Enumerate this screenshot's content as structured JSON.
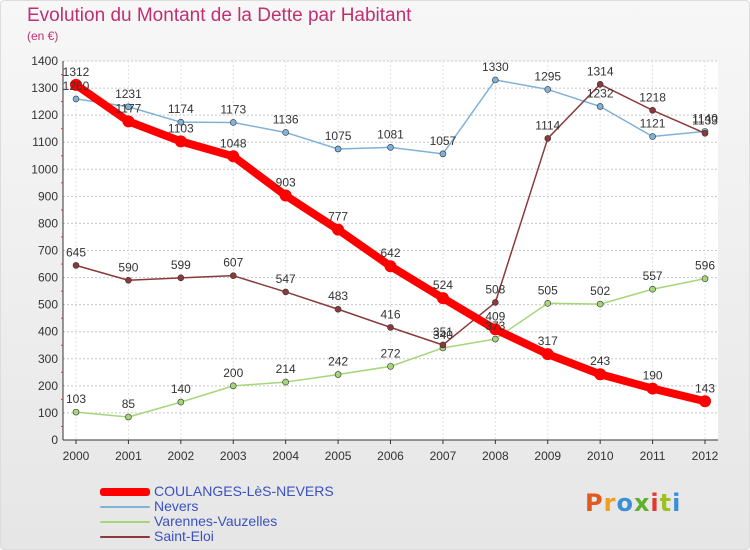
{
  "title": "Evolution du Montant de la Dette par Habitant",
  "subtitle": "(en €)",
  "brand": "Proxiti",
  "brand_colors": [
    "#e05a20",
    "#f0a020",
    "#3a8fd8",
    "#60b030",
    "#e03a30",
    "#a0c020",
    "#3a8fd8"
  ],
  "chart_data": {
    "type": "line",
    "x": [
      "2000",
      "2001",
      "2002",
      "2003",
      "2004",
      "2005",
      "2006",
      "2007",
      "2008",
      "2009",
      "2010",
      "2011",
      "2012"
    ],
    "ylim": [
      0,
      1400
    ],
    "yticks": [
      0,
      100,
      200,
      300,
      400,
      500,
      600,
      700,
      800,
      900,
      1000,
      1100,
      1200,
      1300,
      1400
    ],
    "grid": "horizontal",
    "legend_position": "bottom-left",
    "series": [
      {
        "name": "COULANGES-LèS-NEVERS",
        "color": "#ff0000",
        "values": [
          1312,
          1177,
          1103,
          1048,
          903,
          777,
          642,
          524,
          409,
          317,
          243,
          190,
          143
        ],
        "labels": [
          "1312",
          "1177",
          "1103",
          "1048",
          "903",
          "777",
          "642",
          "524",
          "409",
          "317",
          "243",
          "190",
          "143"
        ]
      },
      {
        "name": "Nevers",
        "color": "#7fb2d8",
        "values": [
          1260,
          1231,
          1174,
          1173,
          1136,
          1075,
          1081,
          1057,
          1330,
          1295,
          1232,
          1121,
          1140
        ],
        "labels": [
          "1260",
          "1231",
          "1174",
          "1173",
          "1136",
          "1075",
          "1081",
          "1057",
          "1330",
          "1295",
          "1232",
          "1121",
          "1140"
        ]
      },
      {
        "name": "Varennes-Vauzelles",
        "color": "#a6d67a",
        "values": [
          103,
          85,
          140,
          200,
          214,
          242,
          272,
          340,
          373,
          505,
          502,
          557,
          596
        ],
        "labels": [
          "103",
          "85",
          "140",
          "200",
          "214",
          "242",
          "272",
          "340",
          "373",
          "505",
          "502",
          "557",
          "596"
        ]
      },
      {
        "name": "Saint-Eloi",
        "color": "#8a3a3a",
        "values": [
          645,
          590,
          599,
          607,
          547,
          483,
          416,
          351,
          508,
          1114,
          1314,
          1218,
          1133
        ],
        "labels": [
          "645",
          "590",
          "599",
          "607",
          "547",
          "483",
          "416",
          "351",
          "508",
          "1114",
          "1314",
          "1218",
          "1133"
        ]
      }
    ]
  }
}
